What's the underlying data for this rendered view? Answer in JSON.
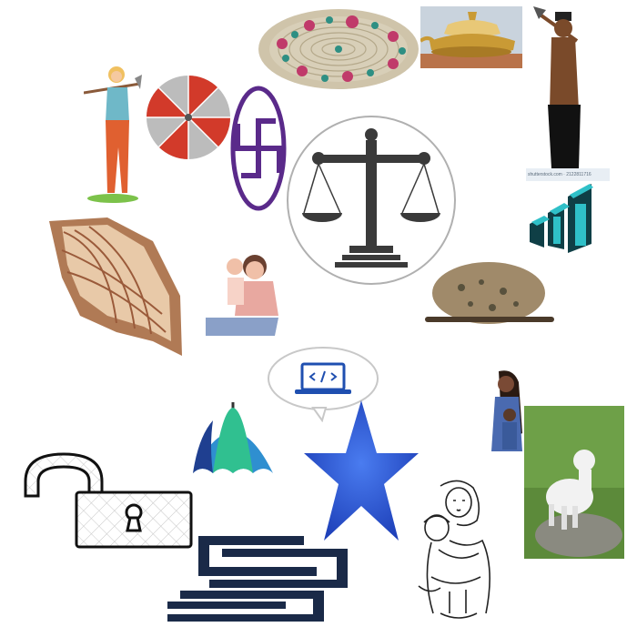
{
  "canvas": {
    "background": "#ffffff",
    "watermark_text": "shutterstock.com · 2122811716",
    "items": [
      {
        "name": "woven-basket-icon",
        "colors": [
          "#cfc4aa",
          "#2e8f83",
          "#c03a6a"
        ]
      },
      {
        "name": "brass-vessel-photo",
        "colors": [
          "#c99a35",
          "#e8c877"
        ]
      },
      {
        "name": "farmer-with-hoe-icon",
        "colors": [
          "#7a4a2a",
          "#111111"
        ]
      },
      {
        "name": "woman-with-hoe-icon",
        "colors": [
          "#e06030",
          "#6fb8c8"
        ]
      },
      {
        "name": "red-umbrella-icon",
        "colors": [
          "#d23a2a",
          "#bcbcbc"
        ]
      },
      {
        "name": "swastika-symbol-icon",
        "colors": [
          "#5a2a8a"
        ]
      },
      {
        "name": "balance-scale-icon",
        "colors": [
          "#3a3a3a"
        ]
      },
      {
        "name": "bar-chart-logo-icon",
        "colors": [
          "#2fc0c8",
          "#0f3f46"
        ]
      },
      {
        "name": "conch-shell-icon",
        "colors": [
          "#b07a55",
          "#e8c9a8"
        ]
      },
      {
        "name": "mother-and-baby-photo",
        "colors": [
          "#e8a8a0",
          "#8aa0c8"
        ]
      },
      {
        "name": "bird-nest-photo",
        "colors": [
          "#a08a6a",
          "#3a3a2a"
        ]
      },
      {
        "name": "laptop-code-bubble-icon",
        "colors": [
          "#1f4fb0"
        ]
      },
      {
        "name": "green-blue-umbrella-icon",
        "colors": [
          "#2f8fd0",
          "#30c090"
        ]
      },
      {
        "name": "blue-star-icon",
        "colors": [
          "#2a4fd0"
        ]
      },
      {
        "name": "mother-hugging-child-icon",
        "colors": [
          "#7a4a35",
          "#4a6ab0"
        ]
      },
      {
        "name": "white-lamb-photo",
        "colors": [
          "#f2f2f2",
          "#5c8a3a"
        ]
      },
      {
        "name": "open-padlock-icon",
        "colors": [
          "#111111"
        ]
      },
      {
        "name": "mother-child-sketch-icon",
        "colors": [
          "#222222"
        ]
      },
      {
        "name": "stacked-bars-logo-icon",
        "colors": [
          "#1a2a48"
        ]
      }
    ]
  }
}
